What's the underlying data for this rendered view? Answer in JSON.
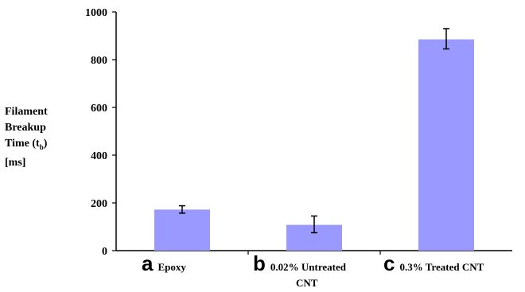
{
  "chart_data": {
    "type": "bar",
    "title": "",
    "ylabel_lines": [
      "Filament",
      "Breakup",
      "Time (t",
      "b",
      ")",
      "[ms]"
    ],
    "ylim": [
      0,
      1000
    ],
    "yticks": [
      0,
      200,
      400,
      600,
      800,
      1000
    ],
    "grid": false,
    "legend": "none",
    "categories": [
      {
        "letter": "a",
        "lines": [
          "Epoxy"
        ]
      },
      {
        "letter": "b",
        "lines": [
          "0.02% Untreated",
          "CNT"
        ]
      },
      {
        "letter": "c",
        "lines": [
          "0.3% Treated CNT"
        ]
      }
    ],
    "values": [
      172,
      108,
      885
    ],
    "errors": [
      [
        157,
        188
      ],
      [
        75,
        145
      ],
      [
        845,
        930
      ]
    ],
    "colors": {
      "bar": "#9999ff",
      "axis": "#000000"
    }
  }
}
